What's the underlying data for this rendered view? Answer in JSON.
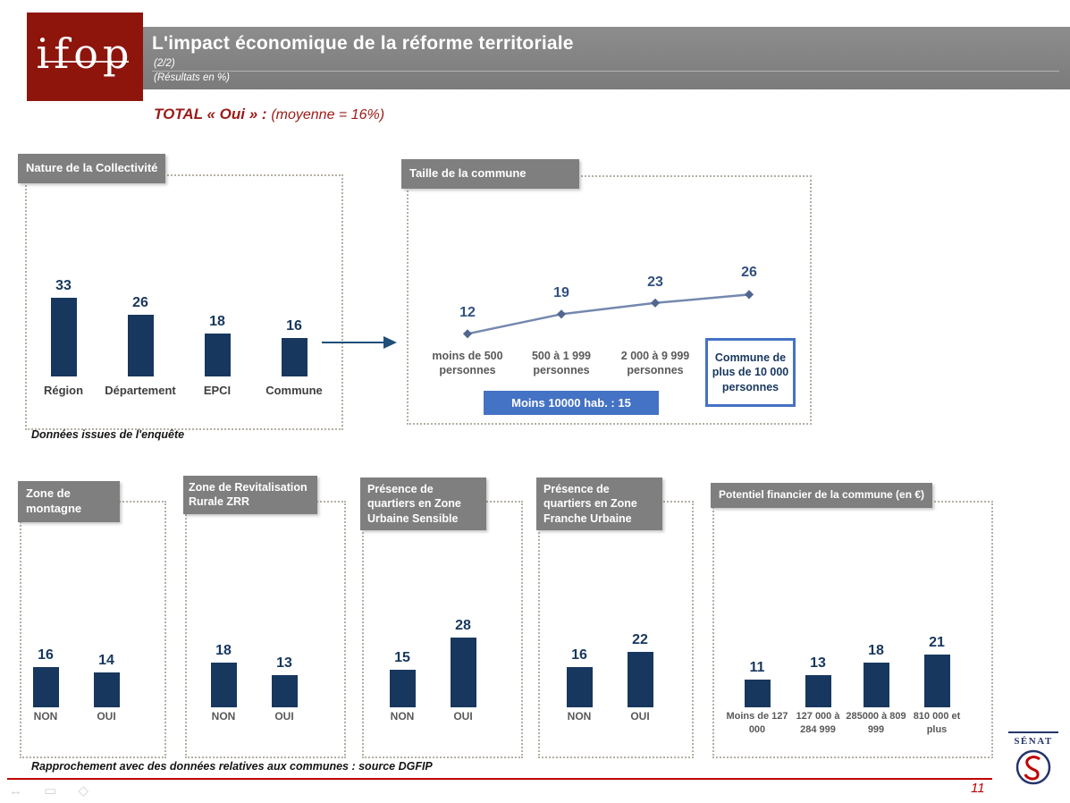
{
  "header": {
    "logo_text": "ifop",
    "title": "L'impact économique de la réforme territoriale",
    "page_fraction": "(2/2)",
    "results_note": "(Résultats en %)"
  },
  "total": {
    "label": "TOTAL « Oui » :",
    "detail": "(moyenne = 16%)"
  },
  "notes": {
    "survey_note": "Données issues de l'enquête",
    "footer_note": "Rapprochement avec des données relatives aux communes : source DGFIP"
  },
  "footer": {
    "page_number": "11",
    "senat_logo_text": "SÉNAT"
  },
  "colors": {
    "brand_red": "#8E150C",
    "banner_gray": "#7F7F7F",
    "bar_navy": "#17375E",
    "accent_blue": "#4472C4",
    "line_blue": "#7488AF",
    "category_gray": "#595959",
    "footer_red": "#C00000"
  },
  "chart_data": [
    {
      "name": "nature-collectivite",
      "type": "bar",
      "title": "Nature de la Collectivité",
      "categories": [
        "Région",
        "Département",
        "EPCI",
        "Commune"
      ],
      "values": [
        33,
        26,
        18,
        16
      ],
      "xlabel": "",
      "ylabel": "",
      "ylim": [
        0,
        40
      ],
      "grid": false,
      "legend": false
    },
    {
      "name": "taille-commune",
      "type": "line",
      "title": "Taille de la commune",
      "categories": [
        "moins de 500 personnes",
        "500 à 1 999 personnes",
        "2 000 à 9 999 personnes",
        "Commune de plus de 10 000 personnes"
      ],
      "values": [
        12,
        19,
        23,
        26
      ],
      "annotation": "Moins 10000 hab. : 15",
      "highlighted_category_index": 3,
      "xlabel": "",
      "ylabel": "",
      "ylim": [
        0,
        30
      ],
      "grid": false,
      "legend": false
    },
    {
      "name": "zone-montagne",
      "type": "bar",
      "title": "Zone de montagne",
      "categories": [
        "NON",
        "OUI"
      ],
      "values": [
        16,
        14
      ],
      "ylim": [
        0,
        30
      ],
      "grid": false,
      "legend": false
    },
    {
      "name": "zone-revitalisation-rurale",
      "type": "bar",
      "title": "Zone de Revitalisation Rurale ZRR",
      "categories": [
        "NON",
        "OUI"
      ],
      "values": [
        18,
        13
      ],
      "ylim": [
        0,
        30
      ],
      "grid": false,
      "legend": false
    },
    {
      "name": "zone-urbaine-sensible",
      "type": "bar",
      "title": "Présence de quartiers en Zone Urbaine Sensible",
      "categories": [
        "NON",
        "OUI"
      ],
      "values": [
        15,
        28
      ],
      "ylim": [
        0,
        30
      ],
      "grid": false,
      "legend": false
    },
    {
      "name": "zone-franche-urbaine",
      "type": "bar",
      "title": "Présence de quartiers en Zone Franche Urbaine",
      "categories": [
        "NON",
        "OUI"
      ],
      "values": [
        16,
        22
      ],
      "ylim": [
        0,
        30
      ],
      "grid": false,
      "legend": false
    },
    {
      "name": "potentiel-financier",
      "type": "bar",
      "title": "Potentiel financier de la commune (en €)",
      "categories": [
        "Moins de 127 000",
        "127 000 à 284 999",
        "285000 à 809 999",
        "810 000 et plus"
      ],
      "values": [
        11,
        13,
        18,
        21
      ],
      "ylim": [
        0,
        30
      ],
      "grid": false,
      "legend": false
    }
  ]
}
